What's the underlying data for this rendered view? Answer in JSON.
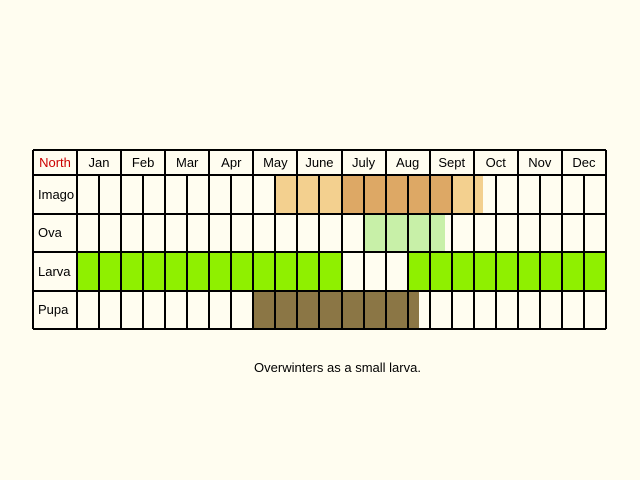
{
  "header_label": "North",
  "header_label_color": "#cc0000",
  "months": [
    "Jan",
    "Feb",
    "Mar",
    "Apr",
    "May",
    "June",
    "July",
    "Aug",
    "Sept",
    "Oct",
    "Nov",
    "Dec"
  ],
  "rows": [
    "Imago",
    "Ova",
    "Larva",
    "Pupa"
  ],
  "note": "Overwinters as a small larva.",
  "chart_data": {
    "type": "table",
    "columns_per_month": 2,
    "stages": [
      {
        "name": "Imago",
        "periods": [
          {
            "start_month": 5.5,
            "end_month": 9.2,
            "color": "#f3d08f"
          },
          {
            "start_month": 7.0,
            "end_month": 8.5,
            "color": "#dda865"
          }
        ]
      },
      {
        "name": "Ova",
        "periods": [
          {
            "start_month": 7.5,
            "end_month": 8.35,
            "color": "#c8f0a8"
          }
        ]
      },
      {
        "name": "Larva",
        "periods": [
          {
            "start_month": 1.0,
            "end_month": 6.0,
            "color": "#8ff000"
          },
          {
            "start_month": 8.5,
            "end_month": 12.0,
            "color": "#8ff000"
          }
        ]
      },
      {
        "name": "Pupa",
        "periods": [
          {
            "start_month": 5.0,
            "end_month": 7.75,
            "color": "#8b7645"
          }
        ]
      }
    ]
  }
}
